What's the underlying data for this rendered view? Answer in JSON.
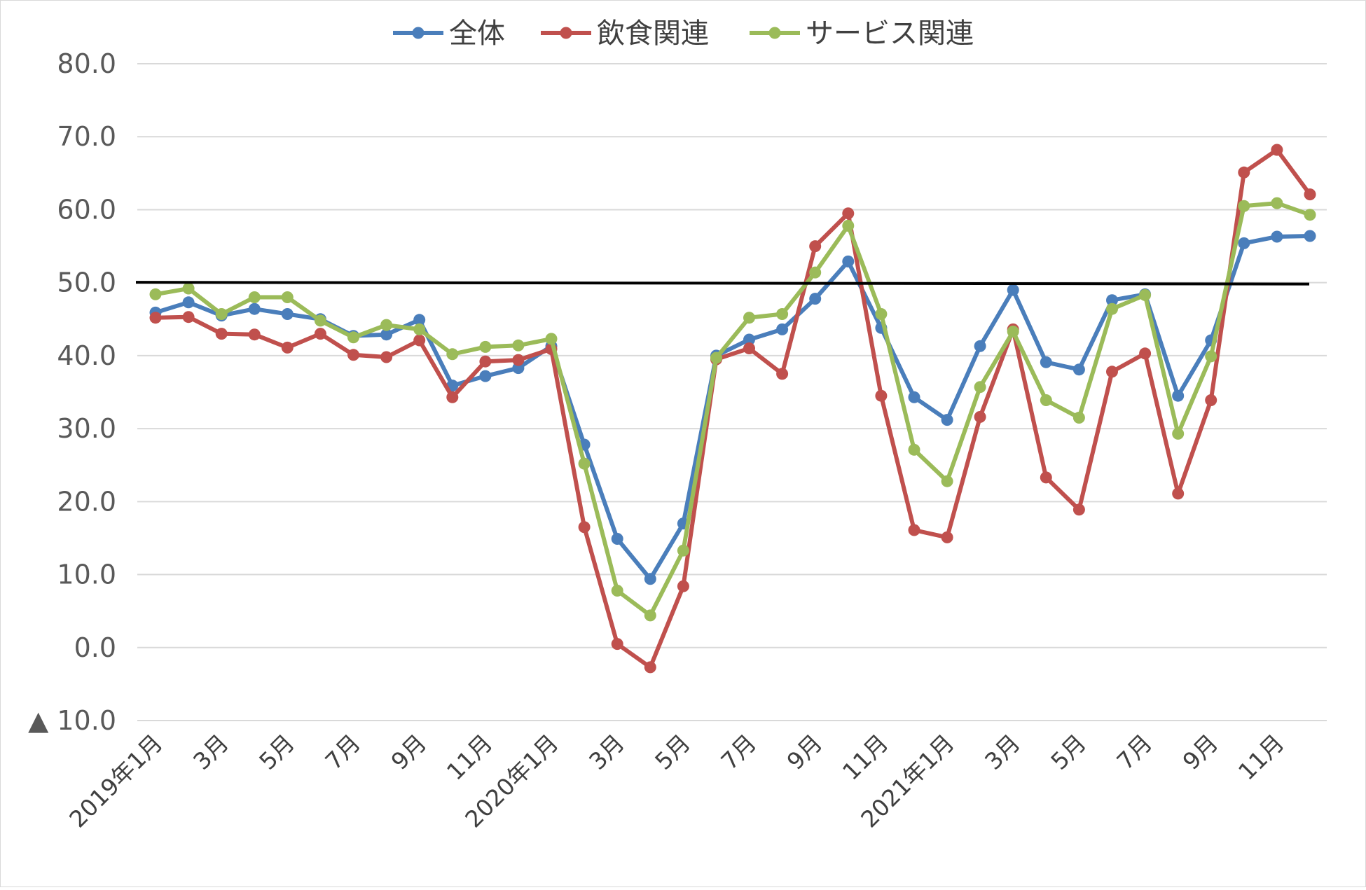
{
  "chart_data": {
    "type": "line",
    "title": "",
    "xlabel": "",
    "ylabel": "",
    "ylim": [
      -10,
      80
    ],
    "yticks": [
      80,
      70,
      60,
      50,
      40,
      30,
      20,
      10,
      0,
      -10
    ],
    "ytick_labels": [
      "80.0",
      "70.0",
      "60.0",
      "50.0",
      "40.0",
      "30.0",
      "20.0",
      "10.0",
      "0.0",
      "▲ 10.0"
    ],
    "categories": [
      "2019-01",
      "2019-02",
      "2019-03",
      "2019-04",
      "2019-05",
      "2019-06",
      "2019-07",
      "2019-08",
      "2019-09",
      "2019-10",
      "2019-11",
      "2019-12",
      "2020-01",
      "2020-02",
      "2020-03",
      "2020-04",
      "2020-05",
      "2020-06",
      "2020-07",
      "2020-08",
      "2020-09",
      "2020-10",
      "2020-11",
      "2020-12",
      "2021-01",
      "2021-02",
      "2021-03",
      "2021-04",
      "2021-05",
      "2021-06",
      "2021-07",
      "2021-08",
      "2021-09",
      "2021-10",
      "2021-11",
      "2021-12"
    ],
    "xtick_labels": [
      "2019年1月",
      "",
      "3月",
      "",
      "5月",
      "",
      "7月",
      "",
      "9月",
      "",
      "11月",
      "",
      "2020年1月",
      "",
      "3月",
      "",
      "5月",
      "",
      "7月",
      "",
      "9月",
      "",
      "11月",
      "",
      "2021年1月",
      "",
      "3月",
      "",
      "5月",
      "",
      "7月",
      "",
      "9月",
      "",
      "11月",
      ""
    ],
    "reference_line": 50,
    "grid": true,
    "legend_position": "top",
    "series": [
      {
        "name": "全体",
        "color": "#4a7ebb",
        "values": [
          45.9,
          47.3,
          45.5,
          46.4,
          45.7,
          45.0,
          42.7,
          42.9,
          44.9,
          35.9,
          37.2,
          38.3,
          41.3,
          27.8,
          14.9,
          9.4,
          17.0,
          40.0,
          42.2,
          43.6,
          47.8,
          52.9,
          43.8,
          34.3,
          31.2,
          41.3,
          49.0,
          39.1,
          38.1,
          47.6,
          48.4,
          34.5,
          42.1,
          55.4,
          56.3,
          56.4
        ]
      },
      {
        "name": "飲食関連",
        "color": "#c0504d",
        "values": [
          45.2,
          45.3,
          43.0,
          42.9,
          41.1,
          43.0,
          40.1,
          39.8,
          42.1,
          34.3,
          39.2,
          39.4,
          40.9,
          16.5,
          0.5,
          -2.7,
          8.4,
          39.5,
          41.0,
          37.5,
          55.0,
          59.5,
          34.5,
          16.1,
          15.1,
          31.6,
          43.6,
          23.3,
          18.9,
          37.8,
          40.3,
          21.1,
          33.9,
          65.1,
          68.2,
          62.1
        ]
      },
      {
        "name": "サービス関連",
        "color": "#9bbb59",
        "values": [
          48.4,
          49.2,
          45.7,
          48.0,
          48.0,
          44.8,
          42.5,
          44.2,
          43.6,
          40.2,
          41.2,
          41.4,
          42.3,
          25.2,
          7.8,
          4.4,
          13.3,
          39.7,
          45.2,
          45.7,
          51.4,
          57.8,
          45.7,
          27.1,
          22.8,
          35.7,
          43.3,
          33.9,
          31.5,
          46.4,
          48.3,
          29.3,
          39.9,
          60.5,
          60.9,
          59.3
        ]
      }
    ]
  }
}
